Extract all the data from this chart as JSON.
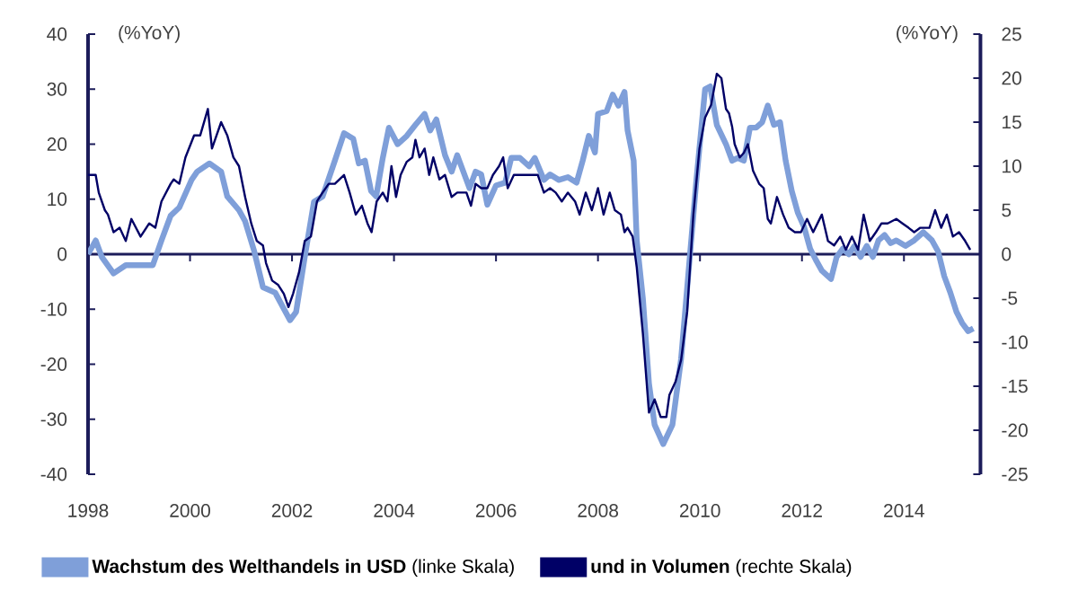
{
  "chart_data": {
    "type": "line",
    "ylabel": "(%YoY)",
    "y2label": "(%YoY)",
    "xlim": [
      1998,
      2015.5
    ],
    "xticks": [
      1998,
      2000,
      2002,
      2004,
      2006,
      2008,
      2010,
      2012,
      2014
    ],
    "ylim": [
      -40,
      40
    ],
    "yticks": [
      -40,
      -30,
      -20,
      -10,
      0,
      10,
      20,
      30,
      40
    ],
    "y2lim": [
      -25,
      25
    ],
    "y2ticks": [
      -25,
      -20,
      -15,
      -10,
      -5,
      0,
      5,
      10,
      15,
      20,
      25
    ],
    "legend": "bottom",
    "series": [
      {
        "name": "**Wachstum des Welthandels in USD** (linke Skala)",
        "color": "#7f9fd9",
        "x": [
          1998.0,
          1998.15,
          1998.27,
          1998.5,
          1998.74,
          1999.0,
          1999.27,
          1999.44,
          1999.62,
          1999.79,
          2000.03,
          2000.14,
          2000.38,
          2000.61,
          2000.73,
          2000.96,
          2001.08,
          2001.26,
          2001.43,
          2001.67,
          2001.96,
          2002.08,
          2002.25,
          2002.43,
          2002.6,
          2002.84,
          2003.02,
          2003.2,
          2003.31,
          2003.43,
          2003.55,
          2003.65,
          2003.78,
          2003.9,
          2004.07,
          2004.25,
          2004.42,
          2004.6,
          2004.71,
          2004.83,
          2005.0,
          2005.13,
          2005.24,
          2005.36,
          2005.48,
          2005.6,
          2005.71,
          2005.83,
          2006.0,
          2006.18,
          2006.3,
          2006.47,
          2006.65,
          2006.76,
          2006.94,
          2007.06,
          2007.23,
          2007.41,
          2007.58,
          2007.7,
          2007.82,
          2007.94,
          2008.0,
          2008.17,
          2008.29,
          2008.4,
          2008.52,
          2008.58,
          2008.7,
          2008.76,
          2008.88,
          2009.0,
          2009.11,
          2009.28,
          2009.46,
          2009.63,
          2009.75,
          2009.93,
          2010.1,
          2010.2,
          2010.33,
          2010.51,
          2010.63,
          2010.74,
          2010.86,
          2010.98,
          2011.1,
          2011.22,
          2011.33,
          2011.45,
          2011.57,
          2011.68,
          2011.8,
          2011.92,
          2012.04,
          2012.16,
          2012.27,
          2012.39,
          2012.57,
          2012.68,
          2012.8,
          2012.92,
          2013.03,
          2013.15,
          2013.27,
          2013.39,
          2013.5,
          2013.62,
          2013.74,
          2013.85,
          2014.03,
          2014.2,
          2014.38,
          2014.55,
          2014.67,
          2014.79,
          2014.91,
          2015.03,
          2015.14,
          2015.26,
          2015.36
        ],
        "values": [
          0,
          2.5,
          -0.5,
          -3.5,
          -2,
          -2,
          -2,
          2.5,
          7,
          8.5,
          13.5,
          15,
          16.5,
          15,
          10.5,
          8,
          6,
          0.5,
          -6,
          -7,
          -12,
          -10.5,
          -0.5,
          9.5,
          10.5,
          17,
          22,
          21,
          16.5,
          17,
          11.5,
          10.5,
          17.5,
          23,
          20,
          21.5,
          23.5,
          25.5,
          22.5,
          24.5,
          18,
          15,
          18,
          15,
          12,
          15,
          14.5,
          9,
          12.5,
          13,
          17.5,
          17.5,
          16,
          17.5,
          13.5,
          14.5,
          13.5,
          14,
          13,
          17,
          21.5,
          18.5,
          25.5,
          26,
          29,
          27,
          29.5,
          22.5,
          17,
          2.5,
          -8,
          -23.5,
          -31,
          -34.5,
          -31,
          -19,
          -6,
          13.5,
          30,
          30.5,
          23.5,
          20,
          17,
          17.5,
          17,
          23,
          23,
          24,
          27,
          23.5,
          24,
          17,
          11.5,
          7.5,
          5,
          1,
          -1,
          -3,
          -4.5,
          -0.5,
          1,
          0,
          1.5,
          -0.5,
          1.5,
          -0.5,
          2.5,
          3.5,
          2,
          2.5,
          1.5,
          2.5,
          4,
          2.5,
          0.5,
          -4,
          -7,
          -10.5,
          -12.5,
          -14,
          -13.5
        ]
      },
      {
        "name": "**und in Volumen** (rechte Skala)",
        "color": "#000066",
        "axis": "y2",
        "x": [
          1998.0,
          1998.15,
          1998.21,
          1998.33,
          1998.39,
          1998.5,
          1998.62,
          1998.74,
          1998.85,
          1999.03,
          1999.2,
          1999.32,
          1999.44,
          1999.62,
          1999.68,
          1999.79,
          1999.91,
          2000.08,
          2000.2,
          2000.35,
          2000.43,
          2000.49,
          2000.61,
          2000.73,
          2000.85,
          2000.96,
          2001.08,
          2001.2,
          2001.31,
          2001.43,
          2001.49,
          2001.61,
          2001.73,
          2001.84,
          2001.93,
          2002.02,
          2002.14,
          2002.25,
          2002.37,
          2002.49,
          2002.6,
          2002.72,
          2002.84,
          2003.02,
          2003.13,
          2003.25,
          2003.37,
          2003.48,
          2003.56,
          2003.66,
          2003.78,
          2003.87,
          2003.95,
          2004.04,
          2004.13,
          2004.25,
          2004.36,
          2004.42,
          2004.5,
          2004.6,
          2004.69,
          2004.77,
          2004.89,
          2005.0,
          2005.13,
          2005.24,
          2005.42,
          2005.51,
          2005.6,
          2005.71,
          2005.83,
          2005.94,
          2006.06,
          2006.14,
          2006.23,
          2006.35,
          2006.53,
          2006.7,
          2006.82,
          2006.94,
          2007.06,
          2007.17,
          2007.29,
          2007.41,
          2007.55,
          2007.64,
          2007.76,
          2007.88,
          2008.0,
          2008.11,
          2008.23,
          2008.33,
          2008.45,
          2008.52,
          2008.58,
          2008.68,
          2008.76,
          2008.88,
          2009.0,
          2009.11,
          2009.23,
          2009.34,
          2009.4,
          2009.52,
          2009.63,
          2009.75,
          2009.87,
          2009.99,
          2010.1,
          2010.22,
          2010.33,
          2010.42,
          2010.51,
          2010.57,
          2010.63,
          2010.68,
          2010.78,
          2010.86,
          2010.94,
          2011.04,
          2011.16,
          2011.25,
          2011.33,
          2011.39,
          2011.51,
          2011.63,
          2011.74,
          2011.86,
          2011.98,
          2012.1,
          2012.22,
          2012.39,
          2012.51,
          2012.63,
          2012.75,
          2012.86,
          2012.98,
          2013.1,
          2013.21,
          2013.33,
          2013.45,
          2013.56,
          2013.68,
          2013.85,
          2013.97,
          2014.09,
          2014.2,
          2014.32,
          2014.5,
          2014.61,
          2014.73,
          2014.84,
          2014.96,
          2015.08,
          2015.2,
          2015.3
        ],
        "values": [
          9,
          9,
          7,
          5,
          4.5,
          2.5,
          3,
          1.5,
          4,
          2,
          3.5,
          3,
          6,
          8,
          8.5,
          8,
          11,
          13.5,
          13.5,
          16.5,
          12,
          13,
          15,
          13.5,
          11,
          10,
          6.5,
          3.5,
          1.5,
          1,
          -1,
          -3,
          -3.5,
          -4.5,
          -6,
          -4.5,
          -2,
          1.5,
          2,
          6,
          7,
          8,
          8,
          9,
          7,
          4.5,
          5.5,
          3.5,
          2.5,
          6,
          7,
          6,
          10,
          6.5,
          9,
          10.5,
          11,
          13,
          11,
          12,
          9,
          11,
          8.5,
          9,
          6.5,
          7,
          7,
          5.5,
          8,
          7.5,
          7.5,
          9,
          10,
          11,
          7.5,
          9,
          9,
          9,
          9,
          7,
          7.5,
          7,
          6,
          7,
          6,
          4.5,
          7,
          5,
          7.5,
          4.5,
          7,
          5,
          4.5,
          2.5,
          3,
          2,
          -1.5,
          -9,
          -18,
          -16.5,
          -18.5,
          -18.5,
          -16,
          -14.5,
          -12,
          -6.5,
          4.5,
          12,
          15.5,
          17,
          20.5,
          20,
          16.5,
          16,
          14.5,
          12.5,
          11,
          11.5,
          12.5,
          9.5,
          8,
          7.5,
          4,
          3.5,
          6.5,
          4.5,
          3,
          2.5,
          2.5,
          4,
          2.5,
          4.5,
          1.5,
          1,
          2,
          0.5,
          2,
          0.5,
          4.5,
          1.5,
          2.5,
          3.5,
          3.5,
          4,
          3.5,
          3,
          2.5,
          3,
          3,
          5,
          3,
          4.5,
          2,
          2.5,
          1.5,
          0.5
        ]
      }
    ]
  }
}
